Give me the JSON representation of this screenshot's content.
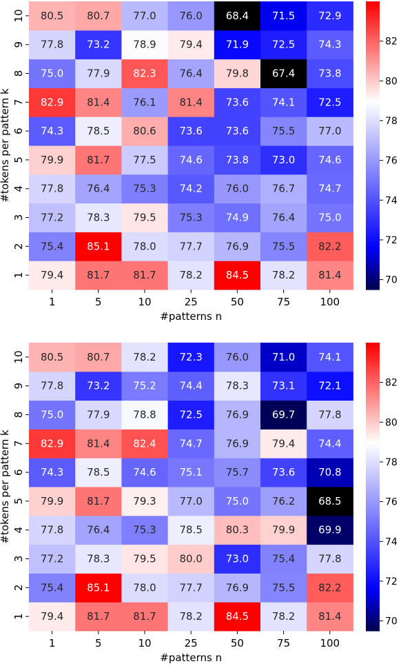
{
  "chart_data": [
    {
      "type": "heatmap",
      "xlabel": "#patterns n",
      "ylabel": "#tokens per pattern k",
      "x_categories": [
        "1",
        "5",
        "10",
        "25",
        "50",
        "75",
        "100"
      ],
      "y_categories": [
        "1",
        "2",
        "3",
        "4",
        "5",
        "6",
        "7",
        "8",
        "9",
        "10"
      ],
      "values": [
        [
          79.4,
          81.7,
          81.7,
          78.2,
          84.5,
          78.2,
          81.4
        ],
        [
          75.4,
          85.1,
          78.0,
          77.7,
          76.9,
          75.5,
          82.2
        ],
        [
          77.2,
          78.3,
          79.5,
          75.3,
          74.9,
          76.4,
          75.0
        ],
        [
          77.8,
          76.4,
          75.3,
          74.2,
          76.0,
          76.7,
          74.7
        ],
        [
          79.9,
          81.7,
          77.5,
          74.6,
          73.8,
          73.0,
          74.6
        ],
        [
          74.3,
          78.5,
          80.6,
          73.6,
          73.6,
          75.5,
          77.0
        ],
        [
          82.9,
          81.4,
          76.1,
          81.4,
          73.6,
          74.1,
          72.5
        ],
        [
          75.0,
          77.9,
          82.3,
          76.4,
          79.8,
          67.4,
          73.8
        ],
        [
          77.8,
          73.2,
          78.9,
          79.4,
          71.9,
          72.5,
          74.3
        ],
        [
          80.5,
          80.7,
          77.0,
          76.0,
          68.4,
          71.5,
          72.9
        ]
      ],
      "colormap": "bwr",
      "vmin": 69.5,
      "vmax": 84.0,
      "colorbar_ticks": [
        "70",
        "72",
        "74",
        "76",
        "78",
        "80",
        "82"
      ]
    },
    {
      "type": "heatmap",
      "xlabel": "#patterns n",
      "ylabel": "#tokens per pattern k",
      "x_categories": [
        "1",
        "5",
        "10",
        "25",
        "50",
        "75",
        "100"
      ],
      "y_categories": [
        "1",
        "2",
        "3",
        "4",
        "5",
        "6",
        "7",
        "8",
        "9",
        "10"
      ],
      "values": [
        [
          79.4,
          81.7,
          81.7,
          78.2,
          84.5,
          78.2,
          81.4
        ],
        [
          75.4,
          85.1,
          78.0,
          77.7,
          76.9,
          75.5,
          82.2
        ],
        [
          77.2,
          78.3,
          79.5,
          80.0,
          73.0,
          75.4,
          77.8
        ],
        [
          77.8,
          76.4,
          75.3,
          78.5,
          80.3,
          79.9,
          69.9
        ],
        [
          79.9,
          81.7,
          79.3,
          77.0,
          75.0,
          76.2,
          68.5
        ],
        [
          74.3,
          78.5,
          74.6,
          75.1,
          75.7,
          73.6,
          70.8
        ],
        [
          82.9,
          81.4,
          82.4,
          74.7,
          76.9,
          79.4,
          74.4
        ],
        [
          75.0,
          77.9,
          78.8,
          72.5,
          76.9,
          69.7,
          77.8
        ],
        [
          77.8,
          73.2,
          75.2,
          74.4,
          78.3,
          73.1,
          72.1
        ],
        [
          80.5,
          80.7,
          78.2,
          72.3,
          76.0,
          71.0,
          74.1
        ]
      ],
      "colormap": "bwr",
      "vmin": 69.5,
      "vmax": 84.0,
      "colorbar_ticks": [
        "70",
        "72",
        "74",
        "76",
        "78",
        "80",
        "82"
      ]
    }
  ]
}
